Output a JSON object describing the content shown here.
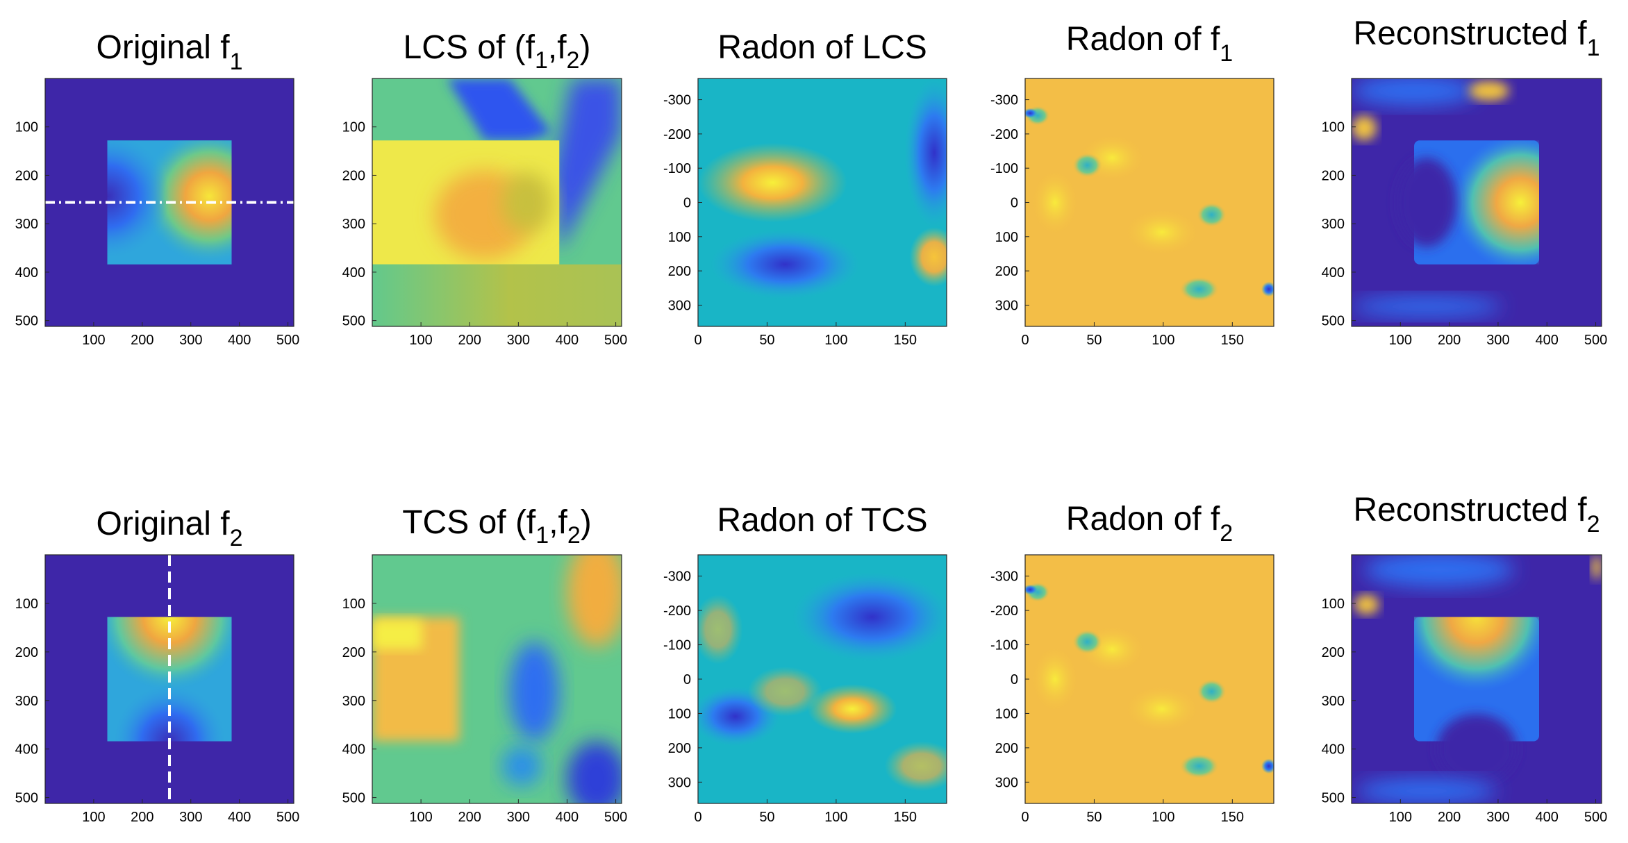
{
  "chart_data": [
    {
      "type": "heatmap",
      "id": "p1",
      "title": "Original f",
      "subscript": "1",
      "x": {
        "ticks": [
          100,
          200,
          300,
          400,
          500
        ],
        "lim": [
          0,
          512
        ]
      },
      "y": {
        "ticks": [
          100,
          200,
          300,
          400,
          500
        ],
        "lim": [
          0,
          512
        ]
      },
      "overlay": "horizontal dash-dot line at y=256",
      "colormap": "parula"
    },
    {
      "type": "heatmap",
      "id": "p2",
      "title_parts": [
        "LCS of (f",
        "1",
        ",f",
        "2",
        ")"
      ],
      "x": {
        "ticks": [
          100,
          200,
          300,
          400,
          500
        ],
        "lim": [
          0,
          512
        ]
      },
      "y": {
        "ticks": [
          100,
          200,
          300,
          400,
          500
        ],
        "lim": [
          0,
          512
        ]
      },
      "colormap": "parula"
    },
    {
      "type": "heatmap",
      "id": "p3",
      "title": "Radon of LCS",
      "x": {
        "ticks": [
          0,
          50,
          100,
          150
        ],
        "lim": [
          0,
          180
        ]
      },
      "y": {
        "ticks": [
          -300,
          -200,
          -100,
          0,
          100,
          200,
          300
        ],
        "lim": [
          -362,
          362
        ]
      },
      "colormap": "parula"
    },
    {
      "type": "heatmap",
      "id": "p4",
      "title": "Radon of f",
      "subscript": "1",
      "x": {
        "ticks": [
          0,
          50,
          100,
          150
        ],
        "lim": [
          0,
          180
        ]
      },
      "y": {
        "ticks": [
          -300,
          -200,
          -100,
          0,
          100,
          200,
          300
        ],
        "lim": [
          -362,
          362
        ]
      },
      "colormap": "parula"
    },
    {
      "type": "heatmap",
      "id": "p5",
      "title": "Reconstructed f",
      "subscript": "1",
      "x": {
        "ticks": [
          100,
          200,
          300,
          400,
          500
        ],
        "lim": [
          0,
          512
        ]
      },
      "y": {
        "ticks": [
          100,
          200,
          300,
          400,
          500
        ],
        "lim": [
          0,
          512
        ]
      },
      "colormap": "parula"
    },
    {
      "type": "heatmap",
      "id": "p6",
      "title": "Original f",
      "subscript": "2",
      "x": {
        "ticks": [
          100,
          200,
          300,
          400,
          500
        ],
        "lim": [
          0,
          512
        ]
      },
      "y": {
        "ticks": [
          100,
          200,
          300,
          400,
          500
        ],
        "lim": [
          0,
          512
        ]
      },
      "overlay": "vertical dashed line at x=256",
      "colormap": "parula"
    },
    {
      "type": "heatmap",
      "id": "p7",
      "title_parts": [
        "TCS of (f",
        "1",
        ",f",
        "2",
        ")"
      ],
      "x": {
        "ticks": [
          100,
          200,
          300,
          400,
          500
        ],
        "lim": [
          0,
          512
        ]
      },
      "y": {
        "ticks": [
          100,
          200,
          300,
          400,
          500
        ],
        "lim": [
          0,
          512
        ]
      },
      "colormap": "parula"
    },
    {
      "type": "heatmap",
      "id": "p8",
      "title": "Radon of TCS",
      "x": {
        "ticks": [
          0,
          50,
          100,
          150
        ],
        "lim": [
          0,
          180
        ]
      },
      "y": {
        "ticks": [
          -300,
          -200,
          -100,
          0,
          100,
          200,
          300
        ],
        "lim": [
          -362,
          362
        ]
      },
      "colormap": "parula"
    },
    {
      "type": "heatmap",
      "id": "p9",
      "title": "Radon of f",
      "subscript": "2",
      "x": {
        "ticks": [
          0,
          50,
          100,
          150
        ],
        "lim": [
          0,
          180
        ]
      },
      "y": {
        "ticks": [
          -300,
          -200,
          -100,
          0,
          100,
          200,
          300
        ],
        "lim": [
          -362,
          362
        ]
      },
      "colormap": "parula"
    },
    {
      "type": "heatmap",
      "id": "p10",
      "title": "Reconstructed f",
      "subscript": "2",
      "x": {
        "ticks": [
          100,
          200,
          300,
          400,
          500
        ],
        "lim": [
          0,
          512
        ]
      },
      "y": {
        "ticks": [
          100,
          200,
          300,
          400,
          500
        ],
        "lim": [
          0,
          512
        ]
      },
      "colormap": "parula"
    }
  ],
  "colors": {
    "dark_blue": "#3e26a8",
    "blue": "#2f5ff3",
    "cyan": "#19b5c6",
    "teal_green": "#5fcc8b",
    "green": "#61c98f",
    "yellow_green": "#c5c044",
    "orange": "#f4ae3a",
    "light_orange": "#f3be47",
    "yellow": "#f6f03a",
    "line_white": "#ffffff"
  }
}
